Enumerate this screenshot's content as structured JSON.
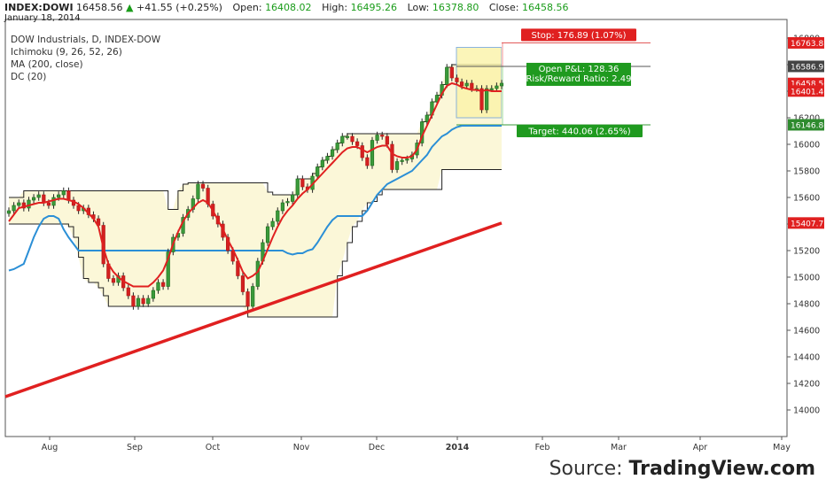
{
  "header": {
    "symbol": "INDEX:DOWI",
    "last": "16458.56",
    "arrow": "▲",
    "change": "+41.55 (+0.25%)",
    "open_label": "Open:",
    "open": "16408.02",
    "high_label": "High:",
    "high": "16495.26",
    "low_label": "Low:",
    "low": "16378.80",
    "close_label": "Close:",
    "close": "16458.56",
    "date": "January 18, 2014"
  },
  "legend": {
    "title": "DOW Industrials, D, INDEX-DOW",
    "ichimoku": "Ichimoku (9, 26, 52, 26)",
    "ma": "MA (200, close)",
    "dc": "DC (20)"
  },
  "source": {
    "prefix": "Source: ",
    "brand": "TradingView.com"
  },
  "colors": {
    "up": "#2e8b2e",
    "down": "#d42020",
    "base_line": "#2b8fd6",
    "conv_line": "#e02020",
    "ma": "#e02020",
    "cloud": "#fbf7d8",
    "stop": "#f8c8c8",
    "target": "#cdebc9"
  },
  "chart_data": {
    "type": "line",
    "title": "DOW Industrials, D, INDEX-DOW",
    "x_ticks": [
      "Aug",
      "Sep",
      "Oct",
      "Nov",
      "Dec",
      "2014",
      "Feb",
      "Mar",
      "Apr",
      "May"
    ],
    "y_ticks": [
      14000,
      14200,
      14400,
      14600,
      14800,
      15000,
      15200,
      15400,
      15600,
      15800,
      16000,
      16200,
      16400,
      16600,
      16800
    ],
    "ylim": [
      13800,
      16900
    ],
    "price_labels": [
      {
        "value": 16763.81,
        "color": "#e02020"
      },
      {
        "value": 16586.92,
        "color": "#444444"
      },
      {
        "value": 16458.56,
        "color": "#e02020"
      },
      {
        "value": 16401.46,
        "color": "#e02020"
      },
      {
        "value": 16146.86,
        "color": "#2e8b2e"
      },
      {
        "value": 15407.71,
        "color": "#e02020"
      }
    ],
    "closes": [
      15500,
      15540,
      15560,
      15520,
      15580,
      15600,
      15620,
      15560,
      15540,
      15600,
      15620,
      15650,
      15580,
      15540,
      15500,
      15520,
      15470,
      15440,
      15390,
      15100,
      14990,
      14960,
      15010,
      14920,
      14860,
      14780,
      14840,
      14800,
      14840,
      14900,
      14960,
      14930,
      15190,
      15300,
      15330,
      15450,
      15510,
      15590,
      15700,
      15670,
      15550,
      15460,
      15400,
      15300,
      15200,
      15120,
      15010,
      14890,
      14780,
      14930,
      15120,
      15260,
      15380,
      15420,
      15500,
      15560,
      15570,
      15620,
      15740,
      15680,
      15660,
      15760,
      15830,
      15880,
      15910,
      15960,
      16010,
      16060,
      16060,
      16020,
      15990,
      15900,
      15840,
      16030,
      16070,
      16060,
      16000,
      15810,
      15870,
      15880,
      15890,
      15920,
      16010,
      16170,
      16220,
      16320,
      16370,
      16450,
      16580,
      16500,
      16470,
      16440,
      16460,
      16420,
      16420,
      16260,
      16420,
      16420,
      16440,
      16460
    ],
    "conversion_line": [
      15420,
      15470,
      15520,
      15530,
      15540,
      15550,
      15560,
      15560,
      15570,
      15580,
      15590,
      15590,
      15580,
      15570,
      15550,
      15520,
      15480,
      15440,
      15380,
      15220,
      15100,
      15040,
      15000,
      14970,
      14950,
      14930,
      14930,
      14930,
      14930,
      14960,
      15000,
      15050,
      15140,
      15250,
      15340,
      15420,
      15480,
      15520,
      15560,
      15580,
      15560,
      15500,
      15430,
      15360,
      15280,
      15210,
      15130,
      15040,
      14990,
      15010,
      15040,
      15120,
      15210,
      15300,
      15380,
      15450,
      15500,
      15540,
      15590,
      15630,
      15660,
      15700,
      15740,
      15780,
      15820,
      15860,
      15900,
      15940,
      15970,
      15980,
      15980,
      15960,
      15940,
      15960,
      15980,
      15990,
      15990,
      15930,
      15910,
      15900,
      15900,
      15910,
      15960,
      16060,
      16140,
      16220,
      16300,
      16380,
      16440,
      16460,
      16450,
      16430,
      16420,
      16410,
      16410,
      16400,
      16410,
      16400,
      16400,
      16400
    ],
    "base_line": [
      15050,
      15060,
      15080,
      15100,
      15200,
      15300,
      15380,
      15440,
      15460,
      15460,
      15440,
      15360,
      15300,
      15250,
      15200,
      15200,
      15200,
      15200,
      15200,
      15200,
      15200,
      15200,
      15200,
      15200,
      15200,
      15200,
      15200,
      15200,
      15200,
      15200,
      15200,
      15200,
      15200,
      15200,
      15200,
      15200,
      15200,
      15200,
      15200,
      15200,
      15200,
      15200,
      15200,
      15200,
      15200,
      15200,
      15200,
      15200,
      15200,
      15200,
      15200,
      15200,
      15200,
      15200,
      15200,
      15200,
      15180,
      15170,
      15180,
      15180,
      15200,
      15210,
      15260,
      15320,
      15380,
      15430,
      15460,
      15460,
      15460,
      15460,
      15460,
      15460,
      15500,
      15560,
      15620,
      15660,
      15700,
      15720,
      15740,
      15760,
      15780,
      15800,
      15840,
      15880,
      15920,
      15980,
      16020,
      16060,
      16080,
      16110,
      16130,
      16140,
      16140,
      16140,
      16140,
      16140,
      16140,
      16140,
      16140,
      16140
    ],
    "ma_200": {
      "start": 14100,
      "end": 15407.71
    },
    "dc_upper": [
      15600,
      15600,
      15600,
      15650,
      15650,
      15650,
      15650,
      15650,
      15650,
      15650,
      15650,
      15650,
      15650,
      15650,
      15650,
      15650,
      15650,
      15650,
      15650,
      15650,
      15650,
      15650,
      15650,
      15650,
      15650,
      15650,
      15650,
      15650,
      15650,
      15650,
      15650,
      15650,
      15510,
      15510,
      15650,
      15700,
      15710,
      15710,
      15710,
      15710,
      15710,
      15710,
      15710,
      15710,
      15710,
      15710,
      15710,
      15710,
      15710,
      15710,
      15710,
      15710,
      15640,
      15620,
      15620,
      15620,
      15620,
      15620,
      15740,
      15740,
      15740,
      15780,
      15830,
      15880,
      15910,
      15960,
      16010,
      16060,
      16080,
      16080,
      16080,
      16080,
      16080,
      16080,
      16080,
      16080,
      16080,
      16080,
      16080,
      16080,
      16080,
      16080,
      16080,
      16170,
      16220,
      16320,
      16370,
      16450,
      16580,
      16600,
      16600,
      16600,
      16600,
      16600,
      16600,
      16600,
      16600,
      16600,
      16600,
      16600
    ],
    "dc_lower": [
      15400,
      15400,
      15400,
      15400,
      15400,
      15400,
      15400,
      15400,
      15400,
      15400,
      15400,
      15400,
      15380,
      15300,
      15150,
      14990,
      14960,
      14960,
      14920,
      14860,
      14780,
      14780,
      14780,
      14780,
      14780,
      14780,
      14780,
      14780,
      14780,
      14780,
      14780,
      14780,
      14780,
      14780,
      14780,
      14780,
      14780,
      14780,
      14780,
      14780,
      14780,
      14780,
      14780,
      14780,
      14780,
      14780,
      14780,
      14780,
      14700,
      14700,
      14700,
      14700,
      14700,
      14700,
      14700,
      14700,
      14700,
      14700,
      14700,
      14700,
      14700,
      14700,
      14700,
      14700,
      14700,
      14700,
      15010,
      15120,
      15260,
      15380,
      15420,
      15500,
      15560,
      15570,
      15620,
      15660,
      15660,
      15660,
      15660,
      15660,
      15660,
      15660,
      15660,
      15660,
      15660,
      15660,
      15660,
      15810,
      15810,
      15810,
      15810,
      15810,
      15810,
      15810,
      15810,
      15810,
      15810,
      15810,
      15810,
      15810
    ],
    "position": {
      "stop_label": "Stop: 176.89 (1.07%)",
      "pnl_label": "Open P&L: 128.36",
      "rr_label": "Risk/Reward Ratio: 2.49",
      "target_label": "Target: 440.06 (2.65%)",
      "entry": 16586.92,
      "stop": 16763.81,
      "target": 16146.86
    }
  }
}
